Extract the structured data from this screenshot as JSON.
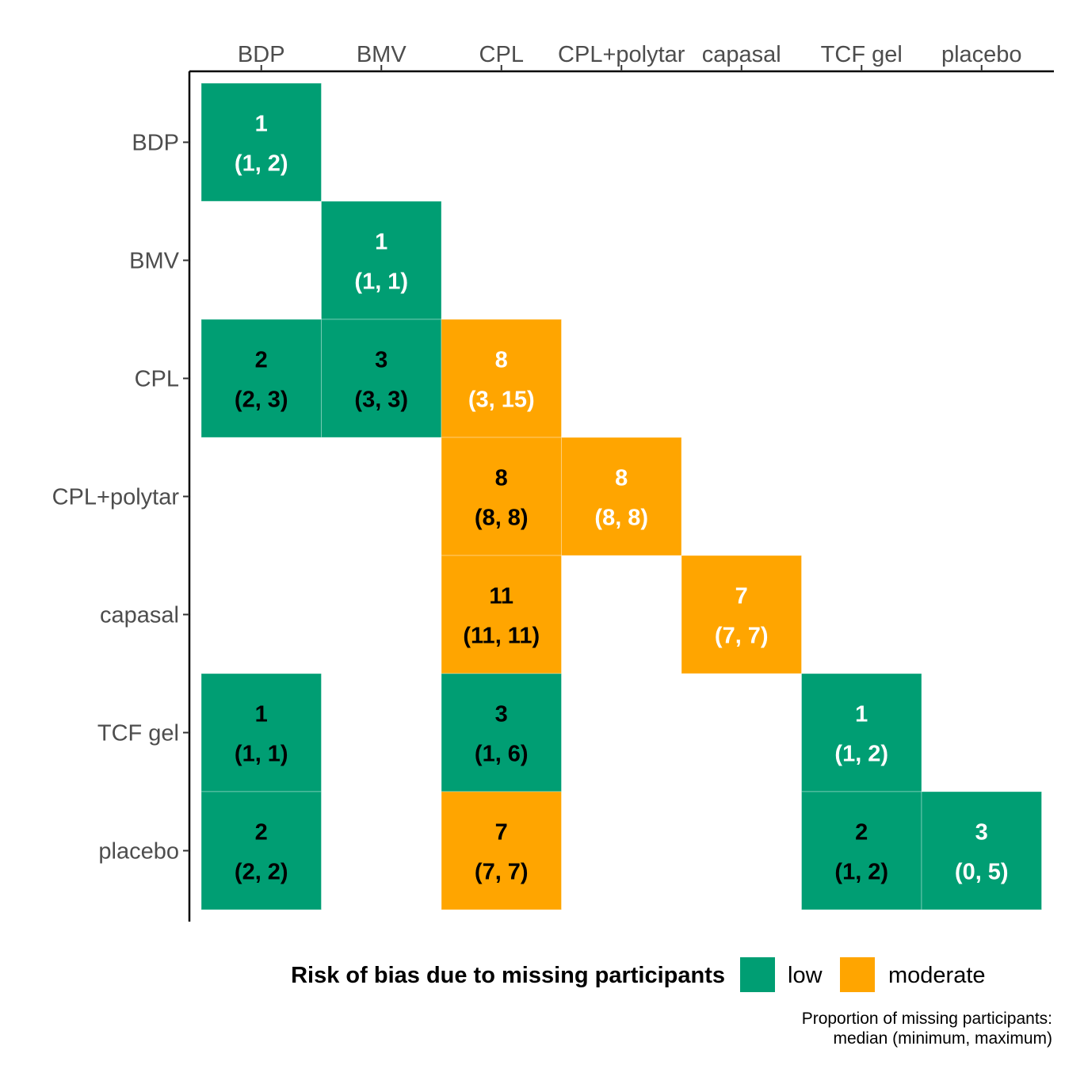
{
  "chart_data": {
    "type": "heatmap",
    "title": "",
    "x_categories": [
      "BDP",
      "BMV",
      "CPL",
      "CPL+polytar",
      "capasal",
      "TCF gel",
      "placebo"
    ],
    "x_tick_labels": [
      "BDP",
      "BMV",
      "CPL",
      "CPL+polytar",
      "capasal",
      "TCF gel",
      "placebo"
    ],
    "y_categories": [
      "BDP",
      "BMV",
      "CPL",
      "CPL+polytar",
      "capasal",
      "TCF gel",
      "placebo"
    ],
    "x_axis_position": "top",
    "grid": false,
    "legend": {
      "title": "Risk of bias due to missing participants",
      "position": "bottom",
      "items": [
        {
          "key": "low",
          "label": "low",
          "color": "#009E73"
        },
        {
          "key": "moderate",
          "label": "moderate",
          "color": "#FFA500"
        }
      ]
    },
    "caption": [
      "Proportion of missing participants:",
      "median (minimum, maximum)"
    ],
    "cells": [
      {
        "row": "BDP",
        "col": "BDP",
        "median": 1,
        "min": 1,
        "max": 2,
        "risk": "low",
        "text_color": "#ffffff"
      },
      {
        "row": "BMV",
        "col": "BMV",
        "median": 1,
        "min": 1,
        "max": 1,
        "risk": "low",
        "text_color": "#ffffff"
      },
      {
        "row": "CPL",
        "col": "BDP",
        "median": 2,
        "min": 2,
        "max": 3,
        "risk": "low",
        "text_color": "#000000"
      },
      {
        "row": "CPL",
        "col": "BMV",
        "median": 3,
        "min": 3,
        "max": 3,
        "risk": "low",
        "text_color": "#000000"
      },
      {
        "row": "CPL",
        "col": "CPL",
        "median": 8,
        "min": 3,
        "max": 15,
        "risk": "moderate",
        "text_color": "#ffffff"
      },
      {
        "row": "CPL+polytar",
        "col": "CPL",
        "median": 8,
        "min": 8,
        "max": 8,
        "risk": "moderate",
        "text_color": "#000000"
      },
      {
        "row": "CPL+polytar",
        "col": "CPL+polytar",
        "median": 8,
        "min": 8,
        "max": 8,
        "risk": "moderate",
        "text_color": "#ffffff"
      },
      {
        "row": "capasal",
        "col": "CPL",
        "median": 11,
        "min": 11,
        "max": 11,
        "risk": "moderate",
        "text_color": "#000000"
      },
      {
        "row": "capasal",
        "col": "capasal",
        "median": 7,
        "min": 7,
        "max": 7,
        "risk": "moderate",
        "text_color": "#ffffff"
      },
      {
        "row": "TCF gel",
        "col": "BDP",
        "median": 1,
        "min": 1,
        "max": 1,
        "risk": "low",
        "text_color": "#000000"
      },
      {
        "row": "TCF gel",
        "col": "CPL",
        "median": 3,
        "min": 1,
        "max": 6,
        "risk": "low",
        "text_color": "#000000"
      },
      {
        "row": "TCF gel",
        "col": "TCF gel",
        "median": 1,
        "min": 1,
        "max": 2,
        "risk": "low",
        "text_color": "#ffffff"
      },
      {
        "row": "placebo",
        "col": "BDP",
        "median": 2,
        "min": 2,
        "max": 2,
        "risk": "low",
        "text_color": "#000000"
      },
      {
        "row": "placebo",
        "col": "CPL",
        "median": 7,
        "min": 7,
        "max": 7,
        "risk": "moderate",
        "text_color": "#000000"
      },
      {
        "row": "placebo",
        "col": "TCF gel",
        "median": 2,
        "min": 1,
        "max": 2,
        "risk": "low",
        "text_color": "#000000"
      },
      {
        "row": "placebo",
        "col": "placebo",
        "median": 3,
        "min": 0,
        "max": 5,
        "risk": "low",
        "text_color": "#ffffff"
      }
    ]
  }
}
